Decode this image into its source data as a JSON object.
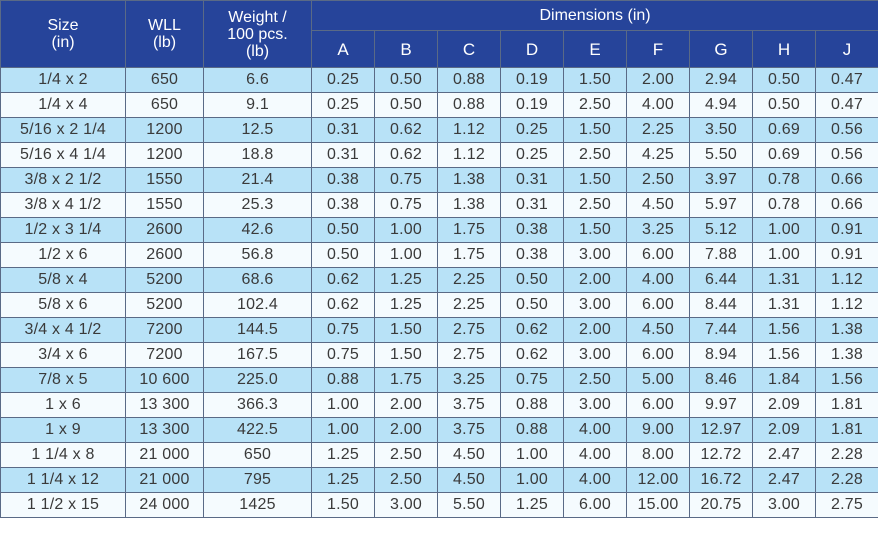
{
  "header": {
    "size": [
      "Size",
      "(in)"
    ],
    "wll": [
      "WLL",
      "(lb)"
    ],
    "weight": [
      "Weight /",
      "100 pcs.",
      "(lb)"
    ],
    "dimensions": "Dimensions (in)",
    "dims": [
      "A",
      "B",
      "C",
      "D",
      "E",
      "F",
      "G",
      "H",
      "J"
    ]
  },
  "rows": [
    [
      "1/4 x 2",
      "650",
      "6.6",
      "0.25",
      "0.50",
      "0.88",
      "0.19",
      "1.50",
      "2.00",
      "2.94",
      "0.50",
      "0.47"
    ],
    [
      "1/4 x 4",
      "650",
      "9.1",
      "0.25",
      "0.50",
      "0.88",
      "0.19",
      "2.50",
      "4.00",
      "4.94",
      "0.50",
      "0.47"
    ],
    [
      "5/16 x 2 1/4",
      "1200",
      "12.5",
      "0.31",
      "0.62",
      "1.12",
      "0.25",
      "1.50",
      "2.25",
      "3.50",
      "0.69",
      "0.56"
    ],
    [
      "5/16 x 4 1/4",
      "1200",
      "18.8",
      "0.31",
      "0.62",
      "1.12",
      "0.25",
      "2.50",
      "4.25",
      "5.50",
      "0.69",
      "0.56"
    ],
    [
      "3/8 x 2 1/2",
      "1550",
      "21.4",
      "0.38",
      "0.75",
      "1.38",
      "0.31",
      "1.50",
      "2.50",
      "3.97",
      "0.78",
      "0.66"
    ],
    [
      "3/8 x 4 1/2",
      "1550",
      "25.3",
      "0.38",
      "0.75",
      "1.38",
      "0.31",
      "2.50",
      "4.50",
      "5.97",
      "0.78",
      "0.66"
    ],
    [
      "1/2 x 3 1/4",
      "2600",
      "42.6",
      "0.50",
      "1.00",
      "1.75",
      "0.38",
      "1.50",
      "3.25",
      "5.12",
      "1.00",
      "0.91"
    ],
    [
      "1/2 x 6",
      "2600",
      "56.8",
      "0.50",
      "1.00",
      "1.75",
      "0.38",
      "3.00",
      "6.00",
      "7.88",
      "1.00",
      "0.91"
    ],
    [
      "5/8 x 4",
      "5200",
      "68.6",
      "0.62",
      "1.25",
      "2.25",
      "0.50",
      "2.00",
      "4.00",
      "6.44",
      "1.31",
      "1.12"
    ],
    [
      "5/8 x 6",
      "5200",
      "102.4",
      "0.62",
      "1.25",
      "2.25",
      "0.50",
      "3.00",
      "6.00",
      "8.44",
      "1.31",
      "1.12"
    ],
    [
      "3/4 x 4 1/2",
      "7200",
      "144.5",
      "0.75",
      "1.50",
      "2.75",
      "0.62",
      "2.00",
      "4.50",
      "7.44",
      "1.56",
      "1.38"
    ],
    [
      "3/4 x 6",
      "7200",
      "167.5",
      "0.75",
      "1.50",
      "2.75",
      "0.62",
      "3.00",
      "6.00",
      "8.94",
      "1.56",
      "1.38"
    ],
    [
      "7/8 x 5",
      "10 600",
      "225.0",
      "0.88",
      "1.75",
      "3.25",
      "0.75",
      "2.50",
      "5.00",
      "8.46",
      "1.84",
      "1.56"
    ],
    [
      "1 x 6",
      "13 300",
      "366.3",
      "1.00",
      "2.00",
      "3.75",
      "0.88",
      "3.00",
      "6.00",
      "9.97",
      "2.09",
      "1.81"
    ],
    [
      "1 x 9",
      "13 300",
      "422.5",
      "1.00",
      "2.00",
      "3.75",
      "0.88",
      "4.00",
      "9.00",
      "12.97",
      "2.09",
      "1.81"
    ],
    [
      "1 1/4 x 8",
      "21 000",
      "650",
      "1.25",
      "2.50",
      "4.50",
      "1.00",
      "4.00",
      "8.00",
      "12.72",
      "2.47",
      "2.28"
    ],
    [
      "1 1/4 x 12",
      "21 000",
      "795",
      "1.25",
      "2.50",
      "4.50",
      "1.00",
      "4.00",
      "12.00",
      "16.72",
      "2.47",
      "2.28"
    ],
    [
      "1 1/2 x 15",
      "24 000",
      "1425",
      "1.50",
      "3.00",
      "5.50",
      "1.25",
      "6.00",
      "15.00",
      "20.75",
      "3.00",
      "2.75"
    ]
  ],
  "colors": {
    "header_bg": "#26449a",
    "header_text": "#ffffff",
    "row_odd_bg": "#b8e2f7",
    "row_even_bg": "#f5fbfe",
    "cell_text": "#3a3a3a",
    "border": "#5a6a86"
  }
}
